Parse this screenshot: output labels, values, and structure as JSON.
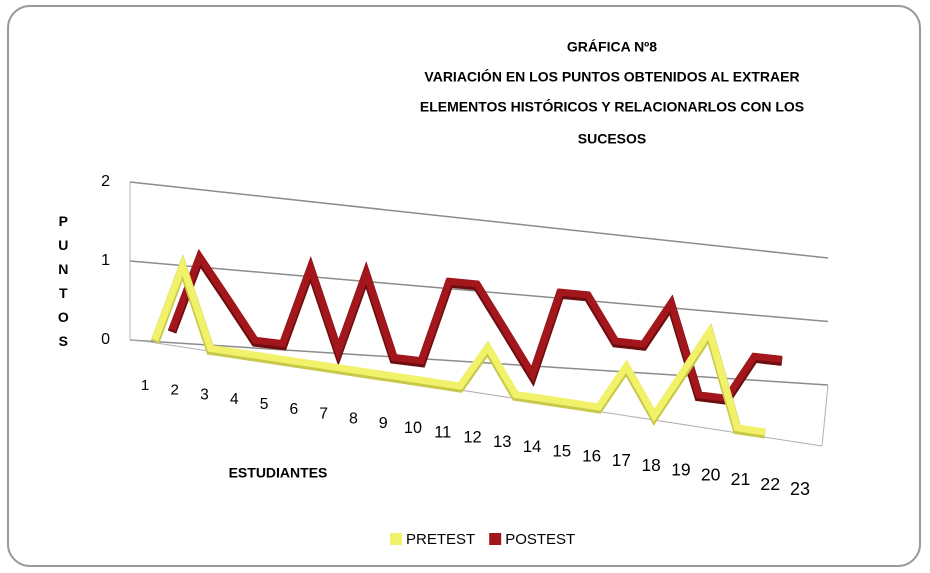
{
  "chart_data": {
    "type": "line3d",
    "title": [
      "GRÁFICA Nº8",
      "VARIACIÓN EN LOS PUNTOS OBTENIDOS AL EXTRAER",
      "ELEMENTOS HISTÓRICOS Y RELACIONARLOS CON LOS",
      "SUCESOS"
    ],
    "x_label": "ESTUDIANTES",
    "y_label": "PUNTOS",
    "categories": [
      "1",
      "2",
      "3",
      "4",
      "5",
      "6",
      "7",
      "8",
      "9",
      "10",
      "11",
      "12",
      "13",
      "14",
      "15",
      "16",
      "17",
      "18",
      "19",
      "20",
      "21",
      "22",
      "23"
    ],
    "series": [
      {
        "name": "PRETEST",
        "color": "#f2f26a",
        "values": [
          0,
          2,
          0,
          0,
          0,
          0,
          0,
          0,
          0,
          0,
          0,
          0,
          1,
          0,
          0,
          0,
          0,
          1,
          0,
          1,
          2,
          0,
          0
        ]
      },
      {
        "name": "POSTEST",
        "color": "#a3161c",
        "values": [
          0,
          2,
          1,
          0,
          0,
          2,
          0,
          2,
          0,
          0,
          2,
          2,
          1,
          0,
          2,
          2,
          1,
          1,
          2,
          0,
          0,
          1,
          1
        ]
      }
    ],
    "ylim": [
      0,
      2
    ],
    "yticks": [
      0,
      1,
      2
    ],
    "grid": true,
    "legend": "bottom"
  }
}
